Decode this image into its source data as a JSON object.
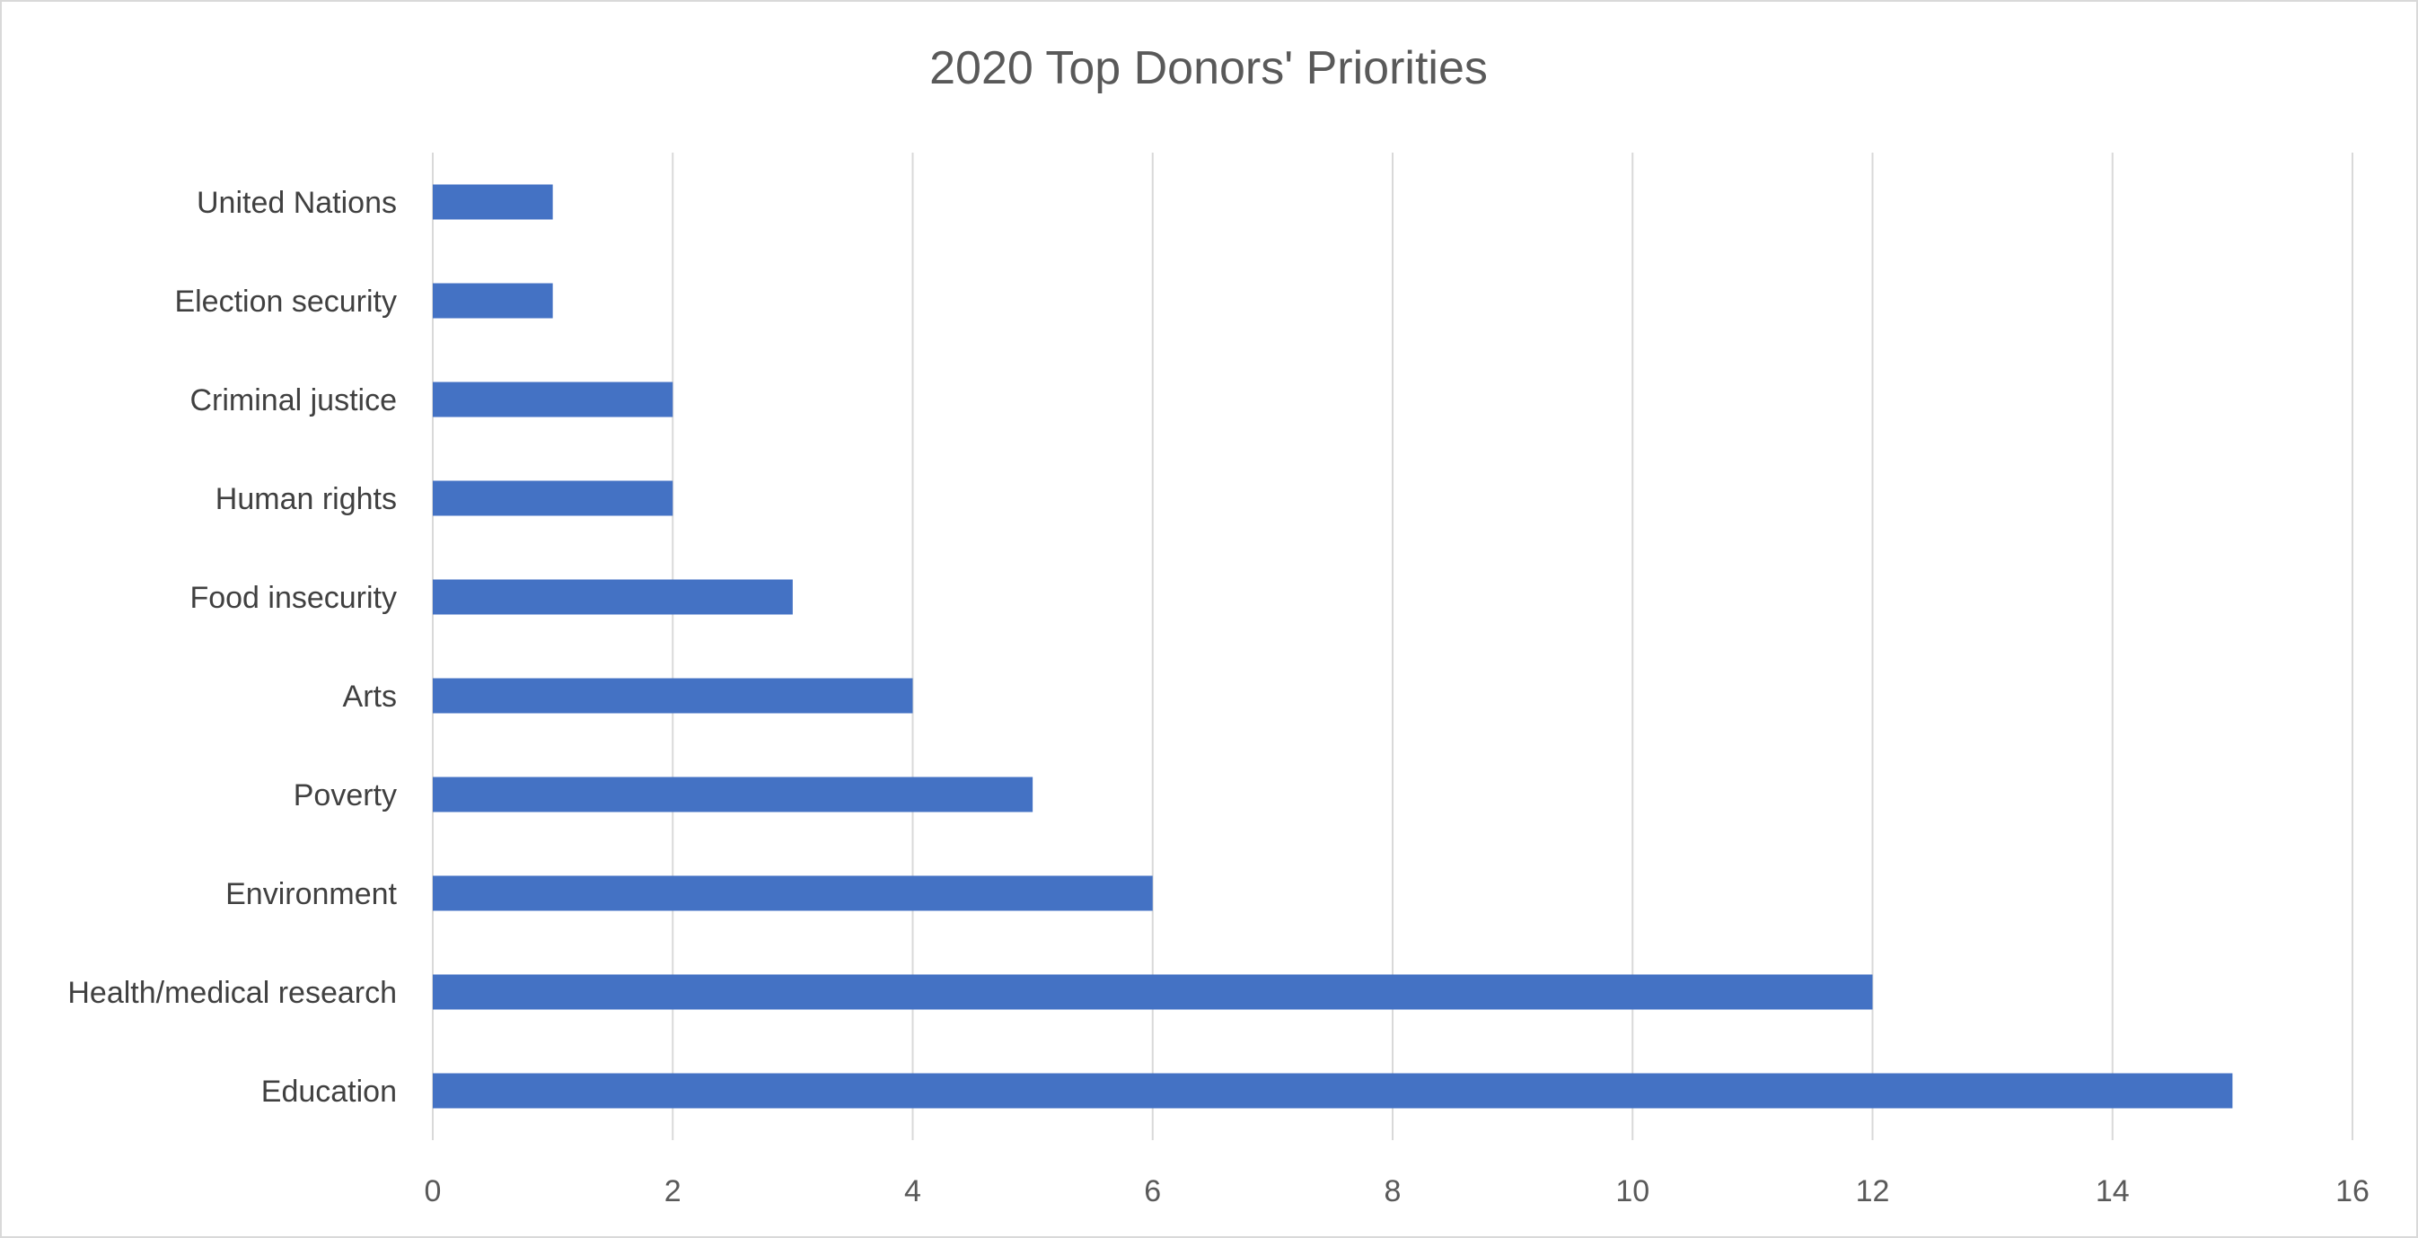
{
  "chart_data": {
    "type": "bar",
    "orientation": "horizontal",
    "title": "2020 Top Donors' Priorities",
    "xlabel": "",
    "ylabel": "",
    "categories": [
      "United Nations",
      "Election security",
      "Criminal justice",
      "Human rights",
      "Food insecurity",
      "Arts",
      "Poverty",
      "Environment",
      "Health/medical research",
      "Education"
    ],
    "values": [
      1,
      1,
      2,
      2,
      3,
      4,
      5,
      6,
      12,
      15
    ],
    "xlim": [
      0,
      16
    ],
    "xticks": [
      0,
      2,
      4,
      6,
      8,
      10,
      12,
      14,
      16
    ],
    "grid": "vertical",
    "legend": "none",
    "bar_color": "#4472C4"
  }
}
